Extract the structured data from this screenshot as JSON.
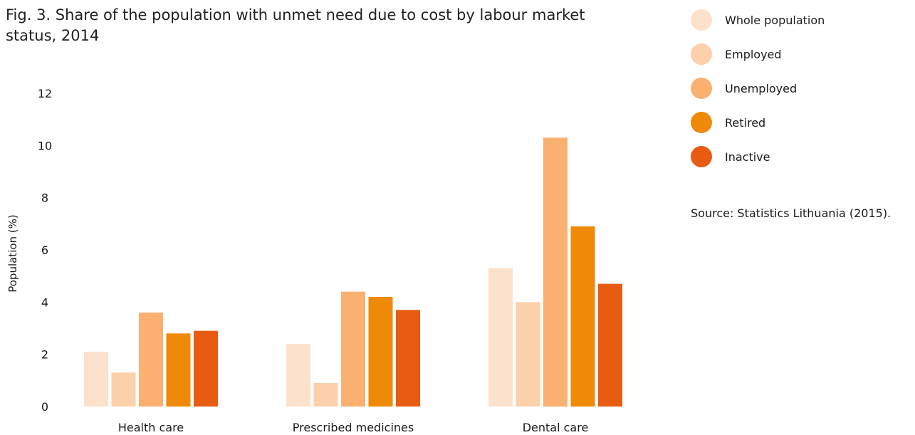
{
  "figure": {
    "title": "Fig. 3. Share of the population with unmet need due to cost by labour market status, 2014",
    "source": "Source: Statistics Lithuania (2015)."
  },
  "legend": [
    {
      "label": "Whole population",
      "color": "#fce1cc"
    },
    {
      "label": "Employed",
      "color": "#fbd0aa"
    },
    {
      "label": "Unemployed",
      "color": "#f9b071"
    },
    {
      "label": "Retired",
      "color": "#ef8a08"
    },
    {
      "label": "Inactive",
      "color": "#e85c11"
    }
  ],
  "chart_data": {
    "type": "bar",
    "title": "Fig. 3. Share of the population with unmet need due to cost by labour market status, 2014",
    "categories": [
      "Health care",
      "Prescribed medicines",
      "Dental care"
    ],
    "series": [
      {
        "name": "Whole population",
        "color": "#fce1cc",
        "values": [
          2.1,
          2.4,
          5.3
        ]
      },
      {
        "name": "Employed",
        "color": "#fbd0aa",
        "values": [
          1.3,
          0.9,
          4.0
        ]
      },
      {
        "name": "Unemployed",
        "color": "#f9b071",
        "values": [
          3.6,
          4.4,
          10.3
        ]
      },
      {
        "name": "Retired",
        "color": "#ef8a08",
        "values": [
          2.8,
          4.2,
          6.9
        ]
      },
      {
        "name": "Inactive",
        "color": "#e85c11",
        "values": [
          2.9,
          3.7,
          4.7
        ]
      }
    ],
    "xlabel": "",
    "ylabel": "Population (%)",
    "ylim": [
      0,
      12
    ],
    "yticks": [
      "0",
      "2",
      "4",
      "6",
      "8",
      "10",
      "12"
    ],
    "grid": false,
    "legend_position": "top-right"
  }
}
